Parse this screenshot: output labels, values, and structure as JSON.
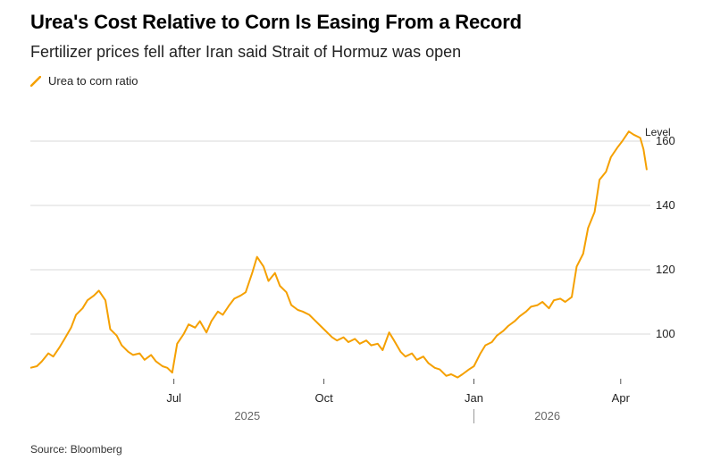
{
  "colors": {
    "series": "#F5A000",
    "grid": "#d9d9d9",
    "axis_text": "#222222"
  },
  "chart_data": {
    "type": "line",
    "title": "Urea's Cost Relative to Corn Is Easing From a Record",
    "subtitle": "Fertilizer prices fell after Iran said Strait of Hormuz was open",
    "ylabel": "Level",
    "source": "Source: Bloomberg",
    "ylim": [
      85,
      165
    ],
    "y_ticks": [
      100,
      120,
      140,
      160
    ],
    "y_tick_labels": [
      "100",
      "120",
      "140",
      "160"
    ],
    "grid": "horizontal",
    "y_axis_side": "right",
    "legend_position": "top-left",
    "x_ticks": [
      {
        "date": "2025-07-01",
        "label": "Jul"
      },
      {
        "date": "2025-10-01",
        "label": "Oct"
      },
      {
        "date": "2026-01-01",
        "label": "Jan"
      },
      {
        "date": "2026-04-01",
        "label": "Apr"
      }
    ],
    "year_labels": [
      {
        "date": "2025-08-15",
        "label": "2025"
      },
      {
        "date": "2026-02-15",
        "label": "2026"
      }
    ],
    "x_range": [
      "2025-04-04",
      "2026-04-17"
    ],
    "series": [
      {
        "name": "Urea to corn ratio",
        "points": [
          [
            "2025-04-04",
            89.5
          ],
          [
            "2025-04-08",
            90.0
          ],
          [
            "2025-04-11",
            91.5
          ],
          [
            "2025-04-15",
            94.0
          ],
          [
            "2025-04-18",
            93.0
          ],
          [
            "2025-04-22",
            96.0
          ],
          [
            "2025-04-25",
            98.5
          ],
          [
            "2025-04-29",
            102.0
          ],
          [
            "2025-05-02",
            106.0
          ],
          [
            "2025-05-06",
            108.0
          ],
          [
            "2025-05-09",
            110.5
          ],
          [
            "2025-05-13",
            112.0
          ],
          [
            "2025-05-16",
            113.5
          ],
          [
            "2025-05-20",
            110.5
          ],
          [
            "2025-05-23",
            101.5
          ],
          [
            "2025-05-27",
            99.5
          ],
          [
            "2025-05-30",
            96.5
          ],
          [
            "2025-06-03",
            94.5
          ],
          [
            "2025-06-06",
            93.5
          ],
          [
            "2025-06-10",
            94.0
          ],
          [
            "2025-06-13",
            92.0
          ],
          [
            "2025-06-17",
            93.5
          ],
          [
            "2025-06-20",
            91.5
          ],
          [
            "2025-06-24",
            90.0
          ],
          [
            "2025-06-27",
            89.5
          ],
          [
            "2025-06-30",
            88.0
          ],
          [
            "2025-07-03",
            97.0
          ],
          [
            "2025-07-07",
            100.0
          ],
          [
            "2025-07-10",
            103.0
          ],
          [
            "2025-07-14",
            102.0
          ],
          [
            "2025-07-17",
            104.0
          ],
          [
            "2025-07-21",
            100.5
          ],
          [
            "2025-07-24",
            104.0
          ],
          [
            "2025-07-28",
            107.0
          ],
          [
            "2025-07-31",
            106.0
          ],
          [
            "2025-08-04",
            109.0
          ],
          [
            "2025-08-07",
            111.0
          ],
          [
            "2025-08-11",
            112.0
          ],
          [
            "2025-08-14",
            113.0
          ],
          [
            "2025-08-18",
            119.0
          ],
          [
            "2025-08-21",
            124.0
          ],
          [
            "2025-08-25",
            121.0
          ],
          [
            "2025-08-28",
            116.5
          ],
          [
            "2025-09-01",
            119.0
          ],
          [
            "2025-09-04",
            115.0
          ],
          [
            "2025-09-08",
            113.0
          ],
          [
            "2025-09-11",
            109.0
          ],
          [
            "2025-09-15",
            107.5
          ],
          [
            "2025-09-18",
            107.0
          ],
          [
            "2025-09-22",
            106.0
          ],
          [
            "2025-09-25",
            104.5
          ],
          [
            "2025-09-29",
            102.5
          ],
          [
            "2025-10-02",
            101.0
          ],
          [
            "2025-10-06",
            99.0
          ],
          [
            "2025-10-09",
            98.0
          ],
          [
            "2025-10-13",
            99.0
          ],
          [
            "2025-10-16",
            97.5
          ],
          [
            "2025-10-20",
            98.5
          ],
          [
            "2025-10-23",
            97.0
          ],
          [
            "2025-10-27",
            98.0
          ],
          [
            "2025-10-30",
            96.5
          ],
          [
            "2025-11-03",
            97.0
          ],
          [
            "2025-11-06",
            95.0
          ],
          [
            "2025-11-10",
            100.5
          ],
          [
            "2025-11-13",
            98.0
          ],
          [
            "2025-11-17",
            94.5
          ],
          [
            "2025-11-20",
            93.0
          ],
          [
            "2025-11-24",
            94.0
          ],
          [
            "2025-11-27",
            92.0
          ],
          [
            "2025-12-01",
            93.0
          ],
          [
            "2025-12-04",
            91.0
          ],
          [
            "2025-12-08",
            89.5
          ],
          [
            "2025-12-11",
            89.0
          ],
          [
            "2025-12-15",
            87.0
          ],
          [
            "2025-12-18",
            87.5
          ],
          [
            "2025-12-22",
            86.5
          ],
          [
            "2025-12-25",
            87.5
          ],
          [
            "2025-12-29",
            89.0
          ],
          [
            "2026-01-01",
            90.0
          ],
          [
            "2026-01-05",
            94.0
          ],
          [
            "2026-01-08",
            96.5
          ],
          [
            "2026-01-12",
            97.5
          ],
          [
            "2026-01-15",
            99.5
          ],
          [
            "2026-01-19",
            101.0
          ],
          [
            "2026-01-22",
            102.5
          ],
          [
            "2026-01-26",
            104.0
          ],
          [
            "2026-01-29",
            105.5
          ],
          [
            "2026-02-02",
            107.0
          ],
          [
            "2026-02-05",
            108.5
          ],
          [
            "2026-02-09",
            109.0
          ],
          [
            "2026-02-12",
            110.0
          ],
          [
            "2026-02-16",
            108.0
          ],
          [
            "2026-02-19",
            110.5
          ],
          [
            "2026-02-23",
            111.0
          ],
          [
            "2026-02-26",
            110.0
          ],
          [
            "2026-03-02",
            111.5
          ],
          [
            "2026-03-05",
            121.0
          ],
          [
            "2026-03-09",
            125.0
          ],
          [
            "2026-03-12",
            133.0
          ],
          [
            "2026-03-16",
            138.0
          ],
          [
            "2026-03-19",
            148.0
          ],
          [
            "2026-03-23",
            150.5
          ],
          [
            "2026-03-26",
            155.0
          ],
          [
            "2026-03-30",
            158.0
          ],
          [
            "2026-04-02",
            160.0
          ],
          [
            "2026-04-06",
            163.0
          ],
          [
            "2026-04-09",
            162.0
          ],
          [
            "2026-04-13",
            161.0
          ],
          [
            "2026-04-15",
            157.5
          ],
          [
            "2026-04-17",
            151.0
          ]
        ]
      }
    ]
  }
}
